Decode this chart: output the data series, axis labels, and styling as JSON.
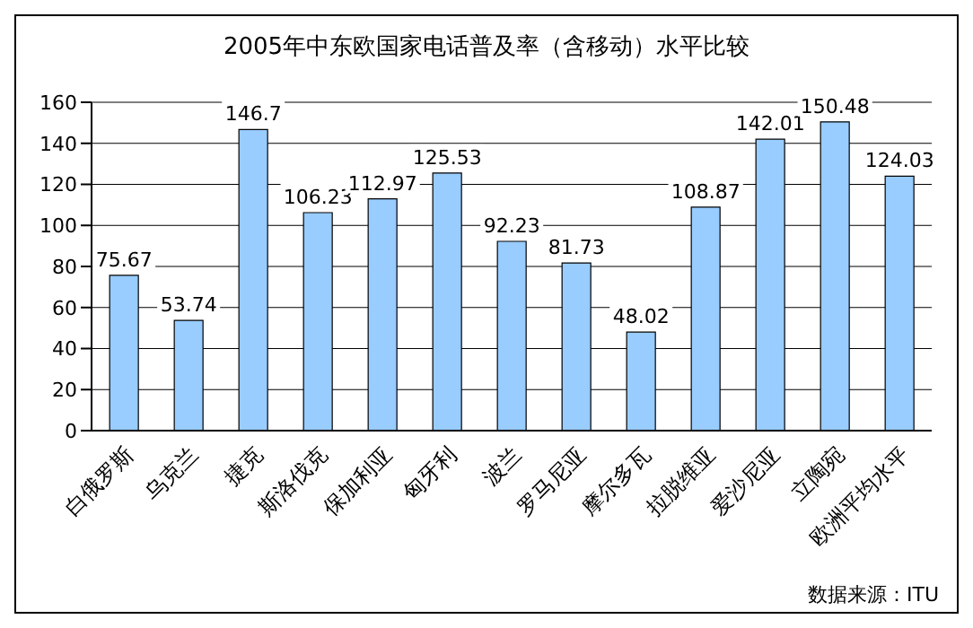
{
  "chart_data": {
    "type": "bar",
    "title": "2005年中东欧国家电话普及率（含移动）水平比较",
    "categories": [
      "白俄罗斯",
      "乌克兰",
      "捷克",
      "斯洛伐克",
      "保加利亚",
      "匈牙利",
      "波兰",
      "罗马尼亚",
      "摩尔多瓦",
      "拉脱维亚",
      "爱沙尼亚",
      "立陶宛",
      "欧洲平均水平"
    ],
    "values": [
      75.67,
      53.74,
      146.7,
      106.23,
      112.97,
      125.53,
      92.23,
      81.73,
      48.02,
      108.87,
      142.01,
      150.48,
      124.03
    ],
    "color": "#99ccff",
    "ylim": [
      0,
      160
    ],
    "yticks": [
      0,
      20,
      40,
      60,
      80,
      100,
      120,
      140,
      160
    ],
    "grid": "y",
    "data_labels": true,
    "annotations": [
      "数据来源：ITU"
    ]
  }
}
